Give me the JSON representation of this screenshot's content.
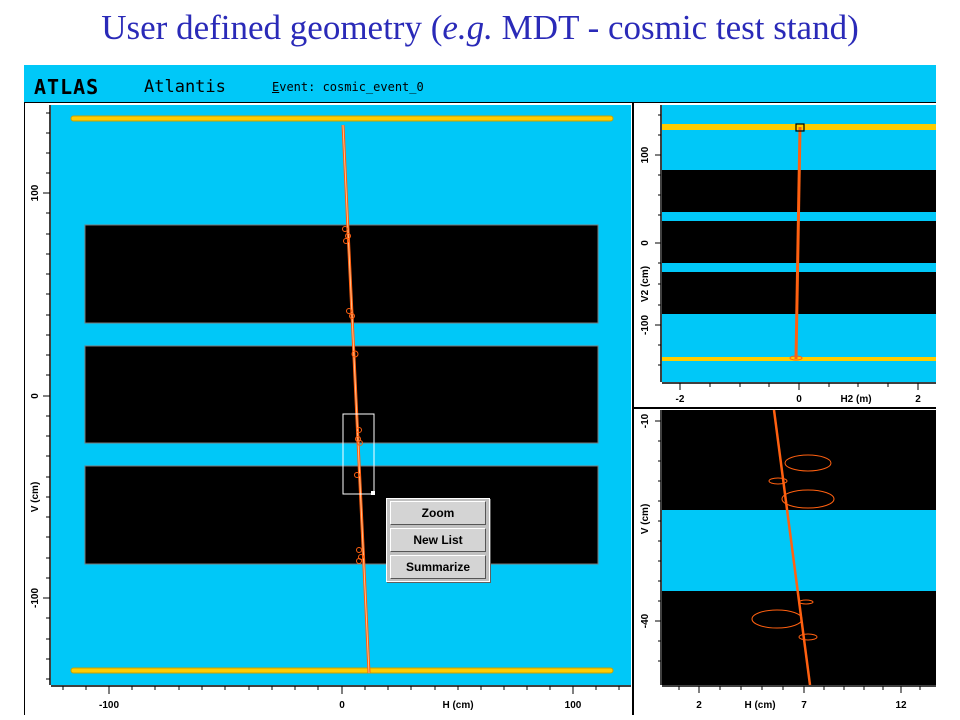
{
  "slide": {
    "title_prefix": "User defined geometry (",
    "title_italic": "e.g.",
    "title_suffix": " MDT - cosmic test stand)"
  },
  "app": {
    "logo_atlas": "ATLAS",
    "logo_atlantis": "Atlantis",
    "event_prefix": "E",
    "event_rest": "vent: cosmic_event_0"
  },
  "colors": {
    "detector_bg": "#00c8f8",
    "chamber": "#000000",
    "track": "#ff6010",
    "scintillator": "#ffcc00",
    "title": "#2a2ab8"
  },
  "main_view": {
    "x_axis_label": "H (cm)",
    "y_axis_label": "V (cm)",
    "x_ticks": [
      "-100",
      "0",
      "100"
    ],
    "y_ticks": [
      "100",
      "0",
      "-100"
    ]
  },
  "top_right_view": {
    "x_axis_label": "H2 (m)",
    "y_axis_label": "V2 (cm)",
    "x_ticks": [
      "-2",
      "0",
      "2"
    ],
    "y_ticks": [
      "100",
      "0",
      "-100"
    ]
  },
  "bottom_right_view": {
    "x_axis_label": "H (cm)",
    "y_axis_label": "V (cm)",
    "x_ticks": [
      "2",
      "7",
      "12"
    ],
    "y_ticks": [
      "-10",
      "-40"
    ]
  },
  "context_menu": {
    "items": [
      "Zoom",
      "New List",
      "Summarize"
    ]
  }
}
